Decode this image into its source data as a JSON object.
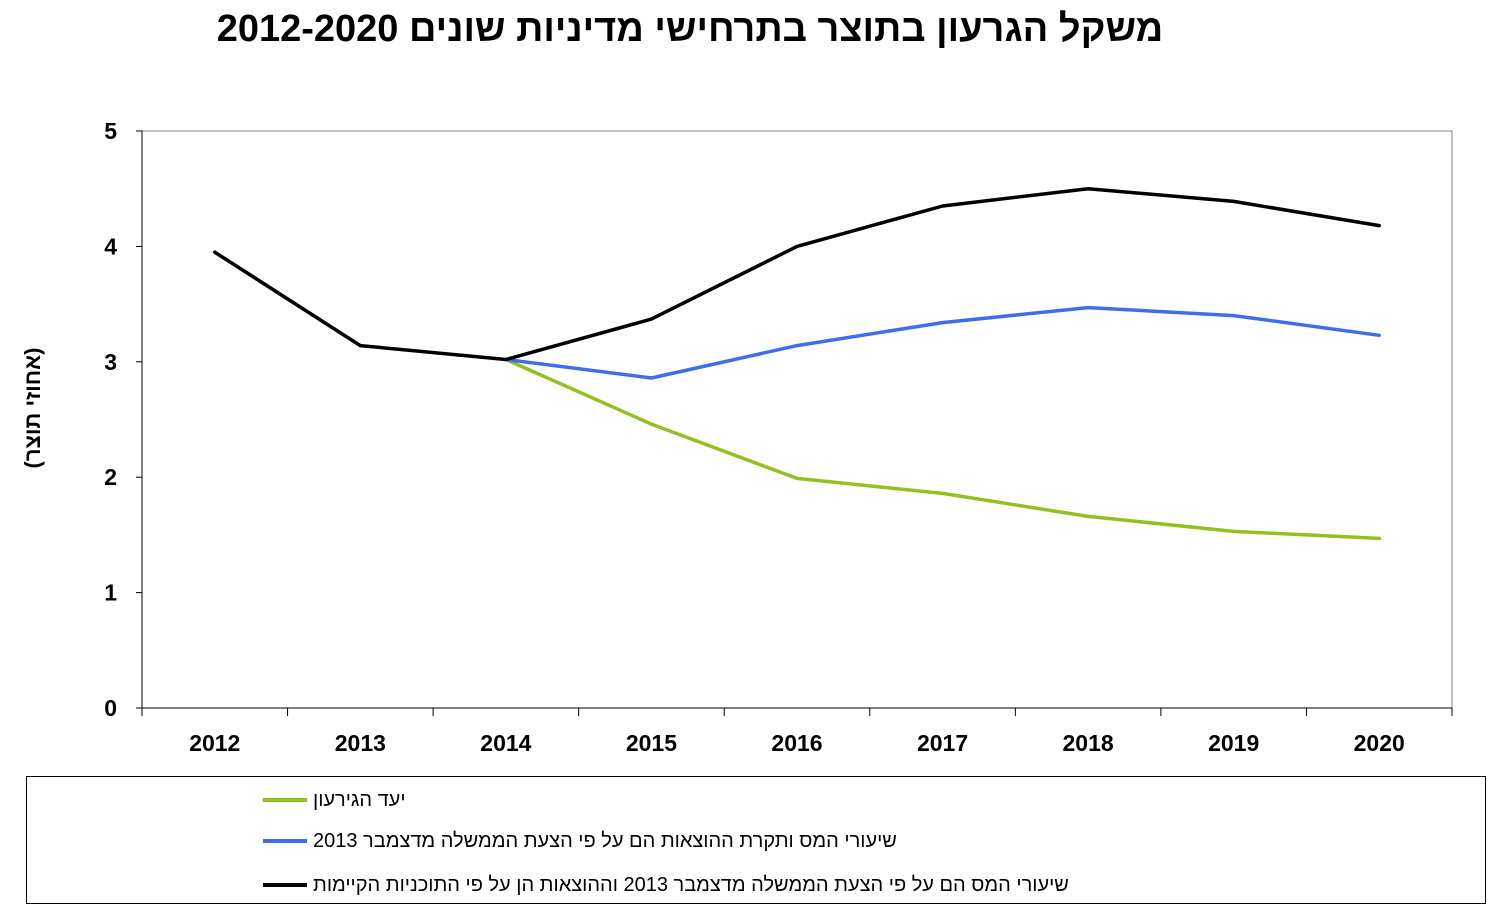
{
  "chart_data": {
    "type": "line",
    "title": "משקל הגרעון בתוצר בתרחישי מדיניות שונים 2012-2020",
    "xlabel": "",
    "ylabel": "(אחוזי תוצר)",
    "categories": [
      "2012",
      "2013",
      "2014",
      "2015",
      "2016",
      "2017",
      "2018",
      "2019",
      "2020"
    ],
    "ylim": [
      0,
      5
    ],
    "yticks": [
      0,
      1,
      2,
      3,
      4,
      5
    ],
    "grid": false,
    "legend_position": "bottom",
    "series": [
      {
        "name": "יעד הגירעון",
        "color": "#92c01f",
        "values": [
          null,
          null,
          3.02,
          2.46,
          1.99,
          1.86,
          1.66,
          1.53,
          1.47
        ]
      },
      {
        "name": "שיעורי המס ותקרת ההוצאות הם על פי הצעת הממשלה מדצמבר 2013",
        "color": "#3e6ded",
        "values": [
          null,
          null,
          3.02,
          2.86,
          3.14,
          3.34,
          3.47,
          3.4,
          3.23
        ]
      },
      {
        "name": "שיעורי המס הם על פי הצעת הממשלה מדצמבר 2013 וההוצאות הן על פי התוכניות הקיימות",
        "color": "#000000",
        "values": [
          3.95,
          3.14,
          3.02,
          3.37,
          4.0,
          4.35,
          4.5,
          4.39,
          4.18
        ]
      }
    ]
  }
}
